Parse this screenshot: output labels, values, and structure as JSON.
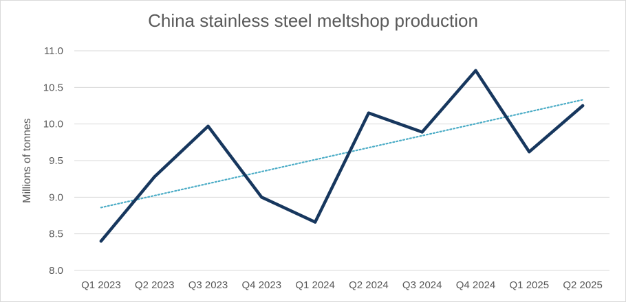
{
  "chart_data": {
    "type": "line",
    "title": "China stainless steel meltshop production",
    "xlabel": "",
    "ylabel": "Millions of tonnes",
    "categories": [
      "Q1 2023",
      "Q2 2023",
      "Q3 2023",
      "Q4 2023",
      "Q1 2024",
      "Q2 2024",
      "Q3 2024",
      "Q4 2024",
      "Q1 2025",
      "Q2 2025"
    ],
    "series": [
      {
        "values": [
          8.4,
          9.28,
          9.97,
          9.0,
          8.66,
          10.15,
          9.89,
          10.73,
          9.62,
          10.25
        ],
        "color": "#17375e"
      }
    ],
    "trendline": {
      "type": "linear",
      "style": "dotted",
      "color": "#4bacc6"
    },
    "ylim": [
      8.0,
      11.0
    ],
    "yticks": [
      "8.0",
      "8.5",
      "9.0",
      "9.5",
      "10.0",
      "10.5",
      "11.0"
    ],
    "grid": true,
    "legend": "none"
  }
}
